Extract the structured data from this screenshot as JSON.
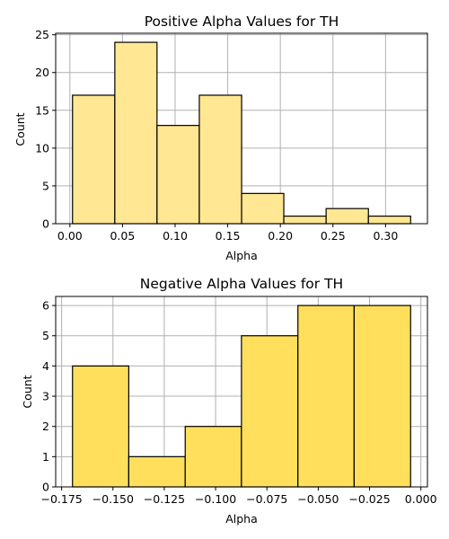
{
  "chart_data": [
    {
      "type": "bar",
      "title": "Positive Alpha Values for TH",
      "xlabel": "Alpha",
      "ylabel": "Count",
      "bin_edges": [
        0.0025,
        0.0427,
        0.0828,
        0.123,
        0.1632,
        0.2033,
        0.2435,
        0.2837,
        0.3238
      ],
      "values": [
        17,
        24,
        13,
        17,
        4,
        1,
        2,
        1
      ],
      "xlim": [
        -0.0135,
        0.3398
      ],
      "ylim": [
        0,
        25.2
      ],
      "xticks": [
        0.0,
        0.05,
        0.1,
        0.15,
        0.2,
        0.25,
        0.3
      ],
      "xtick_labels": [
        "0.00",
        "0.05",
        "0.10",
        "0.15",
        "0.20",
        "0.25",
        "0.30"
      ],
      "yticks": [
        0,
        5,
        10,
        15,
        20,
        25
      ],
      "ytick_labels": [
        "0",
        "5",
        "10",
        "15",
        "20",
        "25"
      ],
      "grid": true,
      "color": "#ffe793"
    },
    {
      "type": "bar",
      "title": "Negative Alpha Values for TH",
      "xlabel": "Alpha",
      "ylabel": "Count",
      "bin_edges": [
        -0.1697,
        -0.1423,
        -0.1148,
        -0.0874,
        -0.0599,
        -0.0325,
        -0.005
      ],
      "values": [
        4,
        1,
        2,
        5,
        6,
        6
      ],
      "xlim": [
        -0.1779,
        0.0032
      ],
      "ylim": [
        0,
        6.3
      ],
      "xticks": [
        -0.175,
        -0.15,
        -0.125,
        -0.1,
        -0.075,
        -0.05,
        -0.025,
        0.0
      ],
      "xtick_labels": [
        "−0.175",
        "−0.150",
        "−0.125",
        "−0.100",
        "−0.075",
        "−0.050",
        "−0.025",
        "0.000"
      ],
      "yticks": [
        0,
        1,
        2,
        3,
        4,
        5,
        6
      ],
      "ytick_labels": [
        "0",
        "1",
        "2",
        "3",
        "4",
        "5",
        "6"
      ],
      "grid": true,
      "color": "#ffdf5c"
    }
  ]
}
